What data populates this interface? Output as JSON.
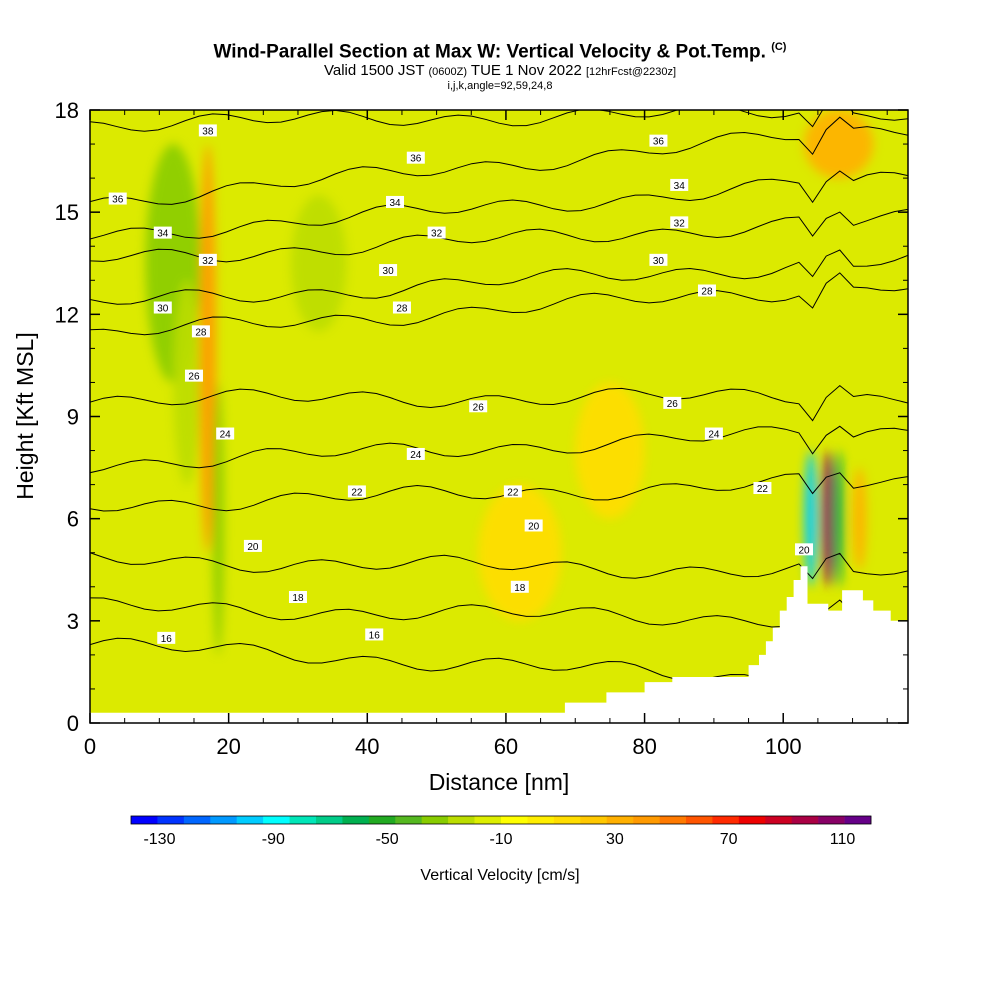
{
  "title": {
    "main": "Wind-Parallel Section at Max W: Vertical Velocity & Pot.Temp.",
    "main_mark": "(C)",
    "valid_prefix": "Valid 1500 JST",
    "valid_z": "(0600Z)",
    "valid_date": "TUE 1 Nov 2022",
    "valid_fcst": "[12hrFcst@2230z]",
    "indices": "i,j,k,angle=92,59,24,8"
  },
  "chart_data": {
    "type": "heatmap",
    "xlabel": "Distance [nm]",
    "ylabel": "Height [Kft MSL]",
    "xlim": [
      0,
      118
    ],
    "ylim": [
      0,
      18
    ],
    "x_ticks": [
      0,
      20,
      40,
      60,
      80,
      100
    ],
    "y_ticks": [
      0,
      3,
      6,
      9,
      12,
      15,
      18
    ],
    "colorbar": {
      "title": "Vertical Velocity [cm/s]",
      "labels": [
        "-130",
        "-90",
        "-50",
        "-10",
        "30",
        "70",
        "110"
      ],
      "label_values": [
        -130,
        -90,
        -50,
        -10,
        30,
        70,
        110
      ],
      "range": [
        -140,
        120
      ],
      "colors": [
        "#0000ff",
        "#0033ff",
        "#0066ff",
        "#0099ff",
        "#00ccff",
        "#00ffff",
        "#00e6b8",
        "#00cc88",
        "#00b050",
        "#22aa22",
        "#55b820",
        "#88cc00",
        "#bbdd00",
        "#ddee00",
        "#ffff00",
        "#ffee00",
        "#ffdd00",
        "#ffc800",
        "#ffb000",
        "#ff9a00",
        "#ff7a00",
        "#ff5500",
        "#ff2a00",
        "#ee0000",
        "#cc0022",
        "#aa0044",
        "#880066",
        "#660088"
      ]
    },
    "field_features": [
      {
        "x": 12,
        "y": 13.5,
        "rx": 4,
        "ry": 3.5,
        "w": -30
      },
      {
        "x": 14,
        "y": 10,
        "rx": 2,
        "ry": 3,
        "w": -20
      },
      {
        "x": 33,
        "y": 13.5,
        "rx": 4,
        "ry": 2,
        "w": -25
      },
      {
        "x": 17,
        "y": 11,
        "rx": 1.2,
        "ry": 6,
        "w": 40
      },
      {
        "x": 18.5,
        "y": 6,
        "rx": 0.8,
        "ry": 4,
        "w": -30
      },
      {
        "x": 104,
        "y": 6,
        "rx": 1,
        "ry": 2,
        "w": -100
      },
      {
        "x": 106.5,
        "y": 6,
        "rx": 1,
        "ry": 2,
        "w": 110
      },
      {
        "x": 108,
        "y": 6,
        "rx": 0.8,
        "ry": 2,
        "w": -60
      },
      {
        "x": 111,
        "y": 6,
        "rx": 1,
        "ry": 1.5,
        "w": 30
      },
      {
        "x": 108,
        "y": 17,
        "rx": 5,
        "ry": 1,
        "w": 35
      },
      {
        "x": 62,
        "y": 5,
        "rx": 6,
        "ry": 2,
        "w": 15
      },
      {
        "x": 75,
        "y": 8,
        "rx": 5,
        "ry": 2,
        "w": 15
      }
    ],
    "theta_contours": [
      {
        "value": 16,
        "y_left": 2.3,
        "y_right": 1.1
      },
      {
        "value": 18,
        "y_left": 3.4,
        "y_right": 3.0
      },
      {
        "value": 20,
        "y_left": 4.8,
        "y_right": 4.4
      },
      {
        "value": 22,
        "y_left": 6.4,
        "y_right": 7.1
      },
      {
        "value": 24,
        "y_left": 7.6,
        "y_right": 8.6
      },
      {
        "value": 26,
        "y_left": 9.5,
        "y_right": 9.6
      },
      {
        "value": 28,
        "y_left": 11.4,
        "y_right": 12.9
      },
      {
        "value": 30,
        "y_left": 12.3,
        "y_right": 13.6
      },
      {
        "value": 32,
        "y_left": 13.6,
        "y_right": 14.8
      },
      {
        "value": 34,
        "y_left": 14.3,
        "y_right": 16.0
      },
      {
        "value": 36,
        "y_left": 15.3,
        "y_right": 17.5
      },
      {
        "value": 38,
        "y_left": 17.6,
        "y_right": 18.0
      }
    ],
    "contour_labels": [
      {
        "text": "38",
        "x": 17,
        "y": 17.4
      },
      {
        "text": "36",
        "x": 4,
        "y": 15.4
      },
      {
        "text": "36",
        "x": 47,
        "y": 16.6
      },
      {
        "text": "36",
        "x": 82,
        "y": 17.1
      },
      {
        "text": "34",
        "x": 10.5,
        "y": 14.4
      },
      {
        "text": "34",
        "x": 44,
        "y": 15.3
      },
      {
        "text": "34",
        "x": 85,
        "y": 15.8
      },
      {
        "text": "32",
        "x": 17,
        "y": 13.6
      },
      {
        "text": "32",
        "x": 50,
        "y": 14.4
      },
      {
        "text": "32",
        "x": 85,
        "y": 14.7
      },
      {
        "text": "30",
        "x": 10.5,
        "y": 12.2
      },
      {
        "text": "30",
        "x": 43,
        "y": 13.3
      },
      {
        "text": "30",
        "x": 82,
        "y": 13.6
      },
      {
        "text": "28",
        "x": 16,
        "y": 11.5
      },
      {
        "text": "28",
        "x": 45,
        "y": 12.2
      },
      {
        "text": "28",
        "x": 89,
        "y": 12.7
      },
      {
        "text": "26",
        "x": 15,
        "y": 10.2
      },
      {
        "text": "26",
        "x": 56,
        "y": 9.3
      },
      {
        "text": "26",
        "x": 84,
        "y": 9.4
      },
      {
        "text": "24",
        "x": 19.5,
        "y": 8.5
      },
      {
        "text": "24",
        "x": 47,
        "y": 7.9
      },
      {
        "text": "24",
        "x": 90,
        "y": 8.5
      },
      {
        "text": "22",
        "x": 38.5,
        "y": 6.8
      },
      {
        "text": "22",
        "x": 61,
        "y": 6.8
      },
      {
        "text": "22",
        "x": 97,
        "y": 6.9
      },
      {
        "text": "20",
        "x": 23.5,
        "y": 5.2
      },
      {
        "text": "20",
        "x": 64,
        "y": 5.8
      },
      {
        "text": "20",
        "x": 103,
        "y": 5.1
      },
      {
        "text": "18",
        "x": 30,
        "y": 3.7
      },
      {
        "text": "18",
        "x": 62,
        "y": 4.0
      },
      {
        "text": "16",
        "x": 11,
        "y": 2.5
      },
      {
        "text": "16",
        "x": 41,
        "y": 2.6
      }
    ],
    "terrain": [
      [
        0,
        0.3
      ],
      [
        68.5,
        0.3
      ],
      [
        68.5,
        0.6
      ],
      [
        74.5,
        0.6
      ],
      [
        74.5,
        0.9
      ],
      [
        80,
        0.9
      ],
      [
        80,
        1.2
      ],
      [
        84,
        1.2
      ],
      [
        84,
        1.35
      ],
      [
        95,
        1.35
      ],
      [
        95,
        1.7
      ],
      [
        96.5,
        1.7
      ],
      [
        96.5,
        2.0
      ],
      [
        97.5,
        2.0
      ],
      [
        97.5,
        2.4
      ],
      [
        98.5,
        2.4
      ],
      [
        98.5,
        2.8
      ],
      [
        99.5,
        2.8
      ],
      [
        99.5,
        3.3
      ],
      [
        100.5,
        3.3
      ],
      [
        100.5,
        3.7
      ],
      [
        101.5,
        3.7
      ],
      [
        101.5,
        4.2
      ],
      [
        102.5,
        4.2
      ],
      [
        102.5,
        4.6
      ],
      [
        103.5,
        4.6
      ],
      [
        103.5,
        3.5
      ],
      [
        106.5,
        3.5
      ],
      [
        106.5,
        3.3
      ],
      [
        108.5,
        3.3
      ],
      [
        108.5,
        3.9
      ],
      [
        111.5,
        3.9
      ],
      [
        111.5,
        3.6
      ],
      [
        113,
        3.6
      ],
      [
        113,
        3.3
      ],
      [
        115.5,
        3.3
      ],
      [
        115.5,
        3.0
      ],
      [
        118,
        3.0
      ]
    ]
  }
}
